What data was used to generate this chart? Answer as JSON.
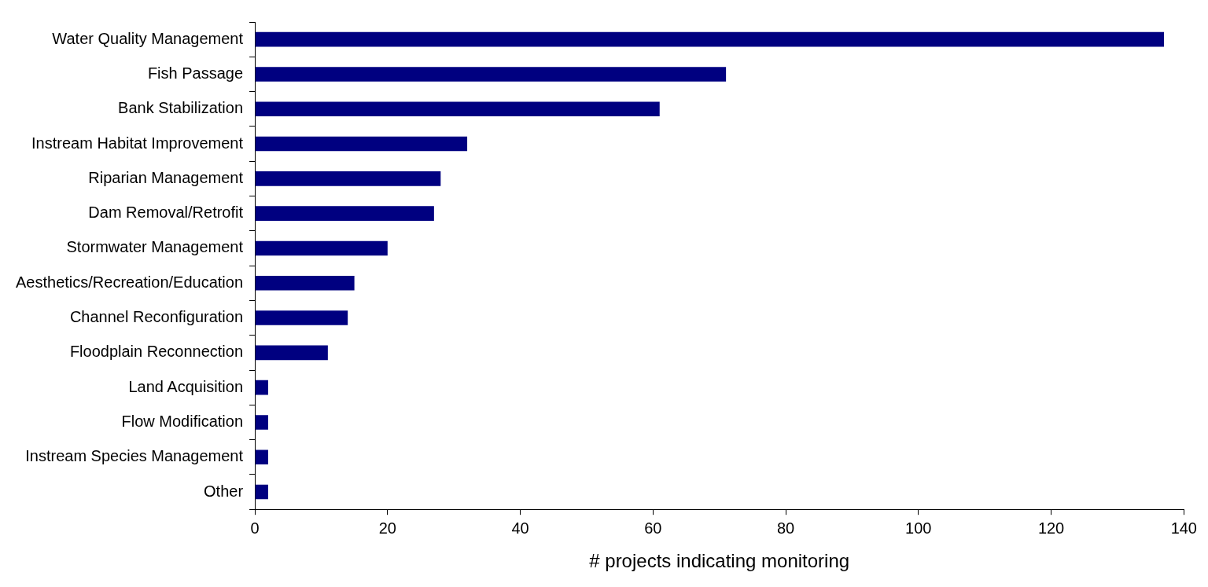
{
  "chart_data": {
    "type": "bar",
    "orientation": "horizontal",
    "xlabel": "# projects indicating monitoring",
    "categories": [
      "Water Quality Management",
      "Fish Passage",
      "Bank Stabilization",
      "Instream Habitat Improvement",
      "Riparian Management",
      "Dam Removal/Retrofit",
      "Stormwater Management",
      "Aesthetics/Recreation/Education",
      "Channel Reconfiguration",
      "Floodplain Reconnection",
      "Land Acquisition",
      "Flow Modification",
      "Instream Species Management",
      "Other"
    ],
    "values": [
      137,
      71,
      61,
      32,
      28,
      27,
      20,
      15,
      14,
      11,
      2,
      2,
      2,
      2
    ],
    "color": "#000080",
    "xlim": [
      0,
      140
    ],
    "xticks": [
      0,
      20,
      40,
      60,
      80,
      100,
      120,
      140
    ],
    "grid": false,
    "legend": false
  }
}
